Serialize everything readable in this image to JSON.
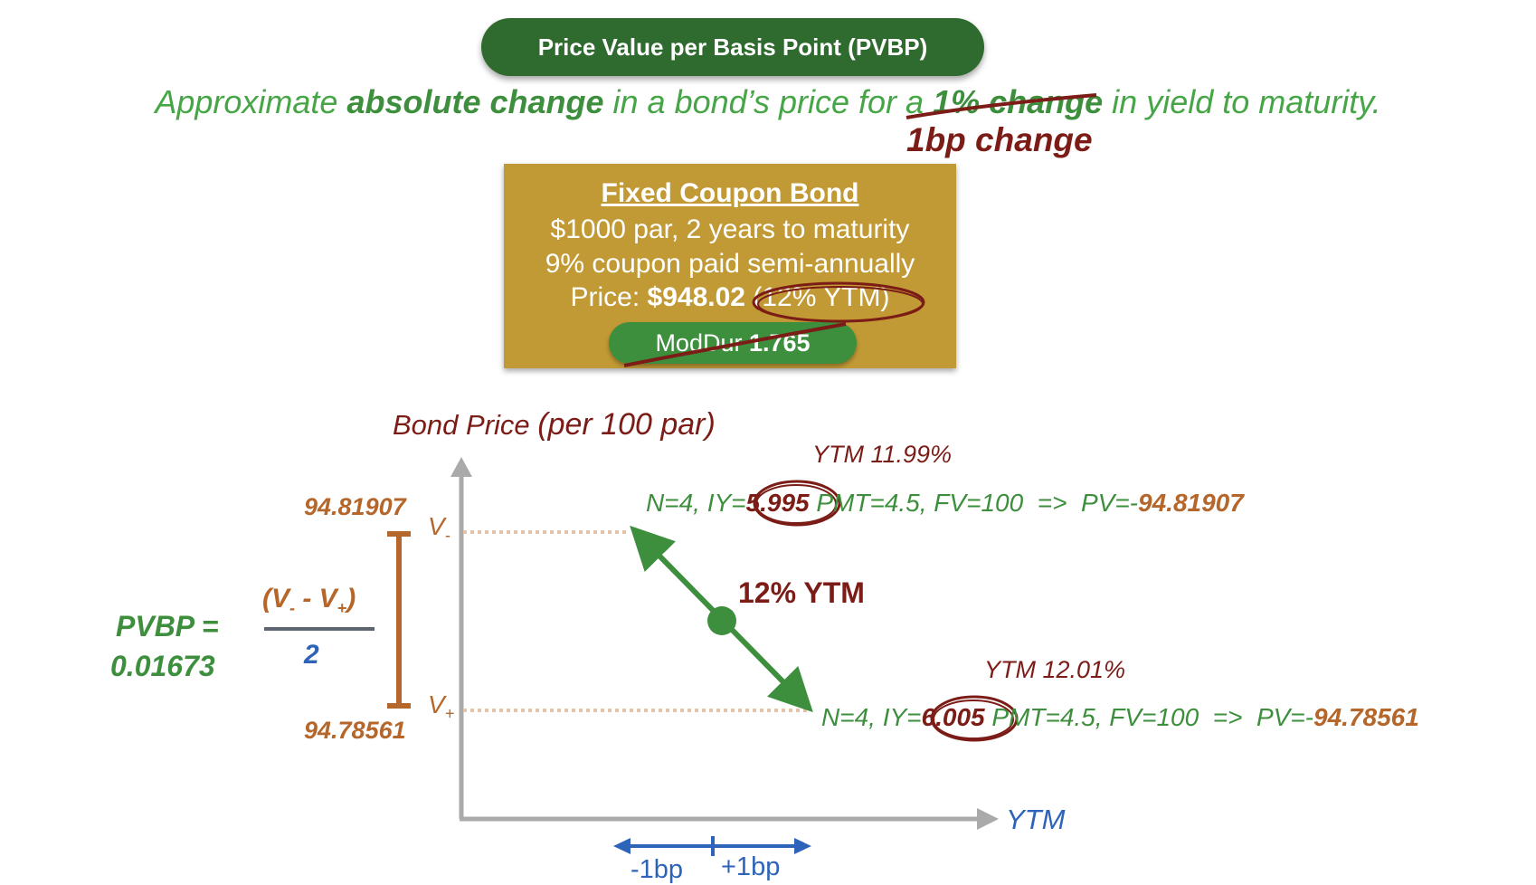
{
  "header": {
    "title": "Price Value per Basis Point (PVBP)"
  },
  "subtitle": {
    "part1": "Approximate ",
    "bold": "absolute change",
    "part2": " in a bond’s price for a ",
    "struck": "1% change",
    "part3": " in yield to maturity.",
    "replacement": "1bp change"
  },
  "bond": {
    "title": "Fixed Coupon Bond",
    "line1": "$1000 par, 2 years to maturity",
    "line2": "9% coupon paid semi-annually",
    "price_label": "Price:",
    "price_value": "$948.02",
    "ytm_note": "(12% YTM)",
    "mod_dur_label": "ModDur",
    "mod_dur_value": "1.765"
  },
  "chart": {
    "y_axis_label": "Bond Price",
    "y_axis_unit": "(per 100 par)",
    "x_axis_label": "YTM",
    "center_label": "12% YTM",
    "v_minus_value": "94.81907",
    "v_plus_value": "94.78561",
    "v_minus_label": "V",
    "v_minus_sub": "-",
    "v_plus_label": "V",
    "v_plus_sub": "+",
    "minus_bp": "-1bp",
    "plus_bp": "+1bp"
  },
  "calc_upper": {
    "ytm": "YTM 11.99%",
    "prefix": "N=4, IY=",
    "iy": "5.995",
    "suffix": " PMT=4.5, FV=100  =>  PV=-",
    "pv": "94.81907"
  },
  "calc_lower": {
    "ytm": "YTM 12.01%",
    "prefix": "N=4, IY=",
    "iy": "6.005",
    "suffix": " PMT=4.5, FV=100  =>  PV=-",
    "pv": "94.78561"
  },
  "formula": {
    "label": "PVBP =",
    "value": "0.01673",
    "numerator_open": "(V",
    "numerator_sub1": "-",
    "numerator_mid": " - V",
    "numerator_sub2": "+",
    "numerator_close": ")",
    "denominator": "2"
  },
  "colors": {
    "title_bg": "#2f6a2f",
    "green": "#3d8f3d",
    "dark_red": "#7b1c17",
    "gold": "#c29a35",
    "orange": "#b5662a",
    "blue": "#2d63b8",
    "axis_gray": "#aaaaaa"
  }
}
